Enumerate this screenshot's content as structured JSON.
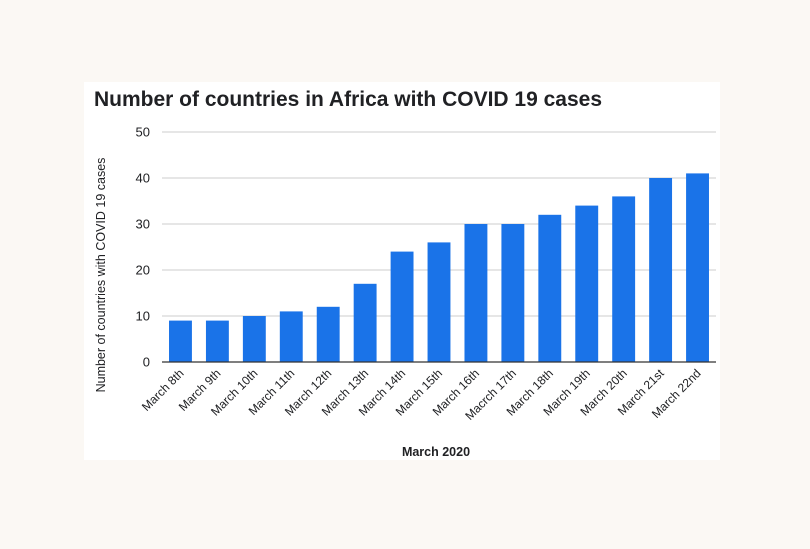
{
  "colors": {
    "bar": "#1a73e8",
    "grid": "#cccccc",
    "axis": "#333333",
    "page_bg": "#fbf8f4"
  },
  "chart_data": {
    "type": "bar",
    "title": "Number of countries in Africa with COVID 19 cases",
    "xlabel": "March 2020",
    "ylabel": "Number of countries with COVID 19 cases",
    "categories": [
      "March 8th",
      "March 9th",
      "March 10th",
      "March 11th",
      "March 12th",
      "March 13th",
      "March 14th",
      "March 15th",
      "March 16th",
      "Macrch 17th",
      "March 18th",
      "March 19th",
      "March 20th",
      "March 21st",
      "March 22nd"
    ],
    "values": [
      9,
      9,
      10,
      11,
      12,
      17,
      24,
      26,
      30,
      30,
      32,
      34,
      36,
      40,
      41
    ],
    "ylim": [
      0,
      50
    ],
    "yticks": [
      0,
      10,
      20,
      30,
      40,
      50
    ],
    "grid": true,
    "legend": "none"
  }
}
